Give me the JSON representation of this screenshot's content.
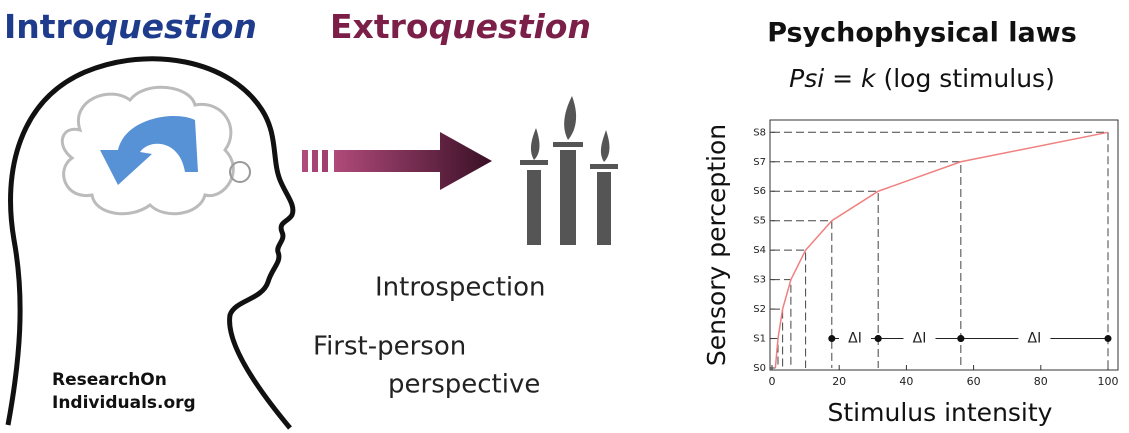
{
  "header": {
    "left_title": {
      "plain": "Intro",
      "italic": "question"
    },
    "middle_title": {
      "plain": "Extro",
      "italic": "question"
    }
  },
  "labels": {
    "introspection": "Introspection",
    "first_person": [
      "First-person",
      "perspective"
    ],
    "website": [
      "ResearchOn",
      "Individuals.org"
    ]
  },
  "chart_data": {
    "type": "line",
    "title": "Psychophysical laws",
    "subtitle": {
      "parts": [
        "Psi",
        " = ",
        "k",
        " (log stimulus)"
      ]
    },
    "x_label": "Stimulus intensity",
    "y_label": "Sensory perception",
    "x": [
      1,
      1.78,
      3.16,
      5.62,
      10,
      17.8,
      31.6,
      56.2,
      100
    ],
    "series": [
      {
        "color": "#f08080",
        "values": [
          0,
          1,
          2,
          3,
          4,
          5,
          6,
          7,
          8
        ]
      }
    ],
    "xlim": [
      0,
      100
    ],
    "ylim": [
      0,
      8.35
    ],
    "xticks": [
      0,
      20,
      40,
      60,
      80,
      100
    ],
    "yticks": [
      {
        "value": 0,
        "label": "S0"
      },
      {
        "value": 1,
        "label": "S1"
      },
      {
        "value": 2,
        "label": "S2"
      },
      {
        "value": 3,
        "label": "S3"
      },
      {
        "value": 4,
        "label": "S4"
      },
      {
        "value": 5,
        "label": "S5"
      },
      {
        "value": 6,
        "label": "S6"
      },
      {
        "value": 7,
        "label": "S7"
      },
      {
        "value": 8,
        "label": "S8"
      }
    ],
    "annotations": [
      "ΔI",
      "ΔI",
      "ΔI"
    ]
  }
}
